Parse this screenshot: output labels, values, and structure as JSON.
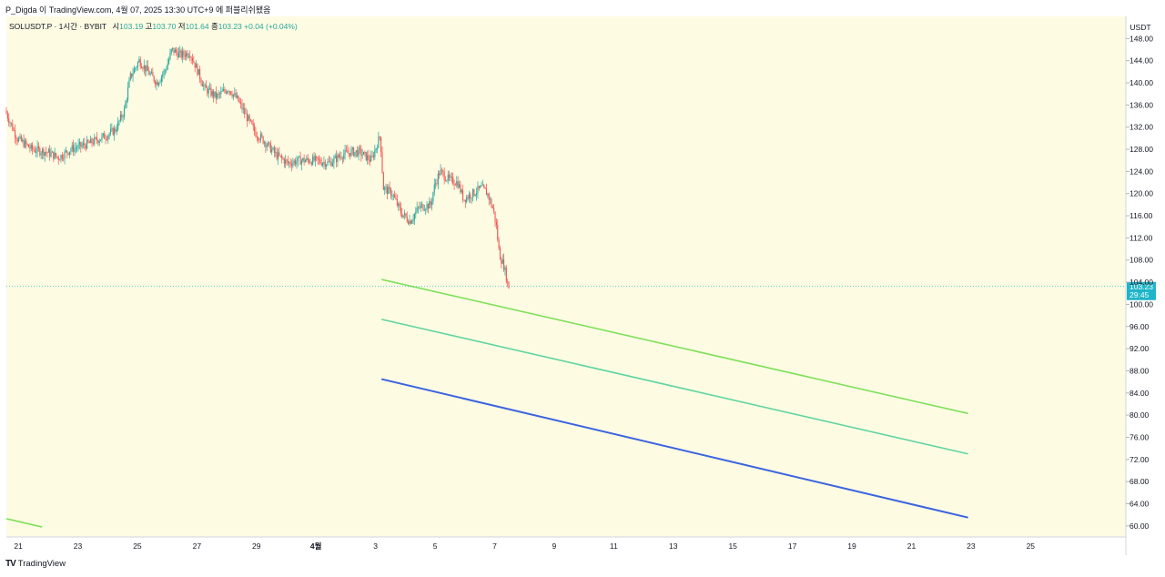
{
  "header": {
    "publish_line": "P_Digda 이 TradingView.com, 4월 07, 2025 13:30 UTC+9 에 퍼블리쉬됐음"
  },
  "legend": {
    "symbol": "SOLUSDT.P · 1시간 · BYBIT",
    "open_label": "시",
    "open": "103.19",
    "high_label": "고",
    "high": "103.70",
    "low_label": "저",
    "low": "101.64",
    "close_label": "종",
    "close": "103.23",
    "change": "+0.04 (+0.04%)"
  },
  "footer": {
    "brand": "TradingView",
    "logo": "TV"
  },
  "colors": {
    "background": "#fefbe3",
    "up": "#26a69a",
    "down": "#ef5350",
    "price_badge": "#1fb5c8",
    "line_light_green": "#7fe05a",
    "line_teal": "#5fd5a0",
    "line_blue": "#3b63e0"
  },
  "chart_data": {
    "type": "candlestick",
    "symbol": "SOLUSDT.P",
    "interval": "1시간",
    "exchange": "BYBIT",
    "currency": "USDT",
    "ylim": [
      58,
      152
    ],
    "y_ticks": [
      "148.00",
      "144.00",
      "140.00",
      "136.00",
      "132.00",
      "128.00",
      "124.00",
      "120.00",
      "116.00",
      "112.00",
      "108.00",
      "104.00",
      "100.00",
      "96.00",
      "92.00",
      "88.00",
      "84.00",
      "80.00",
      "76.00",
      "72.00",
      "68.00",
      "64.00",
      "60.00"
    ],
    "x_ticks": [
      {
        "label": "21",
        "day": -10
      },
      {
        "label": "23",
        "day": -8
      },
      {
        "label": "25",
        "day": -6
      },
      {
        "label": "27",
        "day": -4
      },
      {
        "label": "29",
        "day": -2
      },
      {
        "label": "4월",
        "day": 0
      },
      {
        "label": "3",
        "day": 2
      },
      {
        "label": "5",
        "day": 4
      },
      {
        "label": "7",
        "day": 6
      },
      {
        "label": "9",
        "day": 8
      },
      {
        "label": "11",
        "day": 10
      },
      {
        "label": "13",
        "day": 12
      },
      {
        "label": "15",
        "day": 14
      },
      {
        "label": "17",
        "day": 16
      },
      {
        "label": "19",
        "day": 18
      },
      {
        "label": "21",
        "day": 20
      },
      {
        "label": "23",
        "day": 22
      },
      {
        "label": "25",
        "day": 24
      }
    ],
    "x_range_days": [
      -10.4,
      27.2
    ],
    "last_price": "103.23",
    "countdown": "29:45",
    "price_path": [
      [
        -10.4,
        135.0
      ],
      [
        -10.0,
        130.0
      ],
      [
        -9.5,
        128.0
      ],
      [
        -9.0,
        127.5
      ],
      [
        -8.6,
        126.5
      ],
      [
        -8.2,
        128.0
      ],
      [
        -7.6,
        129.0
      ],
      [
        -7.0,
        130.5
      ],
      [
        -6.7,
        131.5
      ],
      [
        -6.4,
        135.0
      ],
      [
        -6.2,
        141.0
      ],
      [
        -5.9,
        144.0
      ],
      [
        -5.6,
        142.0
      ],
      [
        -5.3,
        140.0
      ],
      [
        -5.0,
        142.5
      ],
      [
        -4.8,
        146.0
      ],
      [
        -4.5,
        145.0
      ],
      [
        -4.2,
        145.5
      ],
      [
        -4.0,
        143.0
      ],
      [
        -3.7,
        139.0
      ],
      [
        -3.3,
        137.5
      ],
      [
        -2.9,
        139.0
      ],
      [
        -2.6,
        137.0
      ],
      [
        -2.3,
        134.0
      ],
      [
        -2.0,
        131.0
      ],
      [
        -1.7,
        129.5
      ],
      [
        -1.3,
        127.0
      ],
      [
        -0.9,
        125.5
      ],
      [
        -0.5,
        126.0
      ],
      [
        0.0,
        126.0
      ],
      [
        0.5,
        125.5
      ],
      [
        0.9,
        127.0
      ],
      [
        1.2,
        127.5
      ],
      [
        1.5,
        127.5
      ],
      [
        1.9,
        126.0
      ],
      [
        2.2,
        130.5
      ],
      [
        2.3,
        121.0
      ],
      [
        2.6,
        120.0
      ],
      [
        2.9,
        116.5
      ],
      [
        3.2,
        115.0
      ],
      [
        3.5,
        117.5
      ],
      [
        3.9,
        118.0
      ],
      [
        4.0,
        121.0
      ],
      [
        4.2,
        124.0
      ],
      [
        4.5,
        122.5
      ],
      [
        4.8,
        122.0
      ],
      [
        5.0,
        119.0
      ],
      [
        5.3,
        120.0
      ],
      [
        5.6,
        121.0
      ],
      [
        5.8,
        120.0
      ],
      [
        6.0,
        117.0
      ],
      [
        6.1,
        114.0
      ],
      [
        6.2,
        109.0
      ],
      [
        6.35,
        107.0
      ],
      [
        6.5,
        103.2
      ]
    ],
    "overlay_lines": [
      {
        "color": "#7fe05a",
        "x1": 2.2,
        "y1": 104.5,
        "x2": 21.9,
        "y2": 80.3
      },
      {
        "color": "#5fd5a0",
        "x1": 2.2,
        "y1": 97.3,
        "x2": 21.9,
        "y2": 73.0
      },
      {
        "color": "#3b63e0",
        "x1": 2.2,
        "y1": 86.5,
        "x2": 21.9,
        "y2": 61.5
      },
      {
        "color": "#7fe05a",
        "x1": -10.4,
        "y1": 61.3,
        "x2": -9.2,
        "y2": 59.8
      }
    ]
  }
}
